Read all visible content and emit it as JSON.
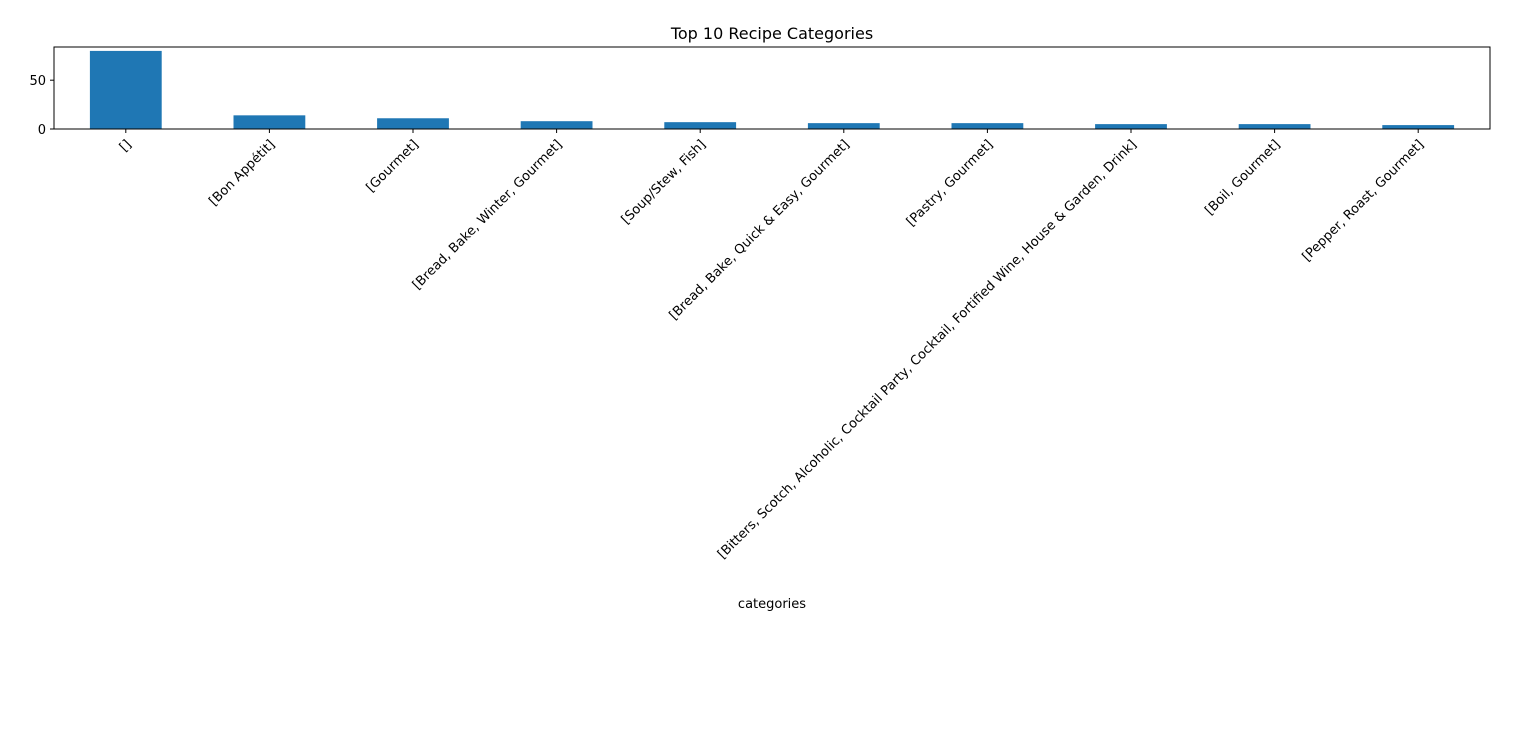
{
  "chart_data": {
    "type": "bar",
    "title": "Top 10 Recipe Categories",
    "xlabel": "categories",
    "ylabel": "",
    "categories": [
      "[]",
      "[Bon Appétit]",
      "[Gourmet]",
      "[Bread, Bake, Winter, Gourmet]",
      "[Soup/Stew, Fish]",
      "[Bread, Bake, Quick & Easy, Gourmet]",
      "[Pastry, Gourmet]",
      "[Bitters, Scotch, Alcoholic, Cocktail Party, Cocktail, Fortified Wine, House & Garden, Drink]",
      "[Boil, Gourmet]",
      "[Pepper, Roast, Gourmet]"
    ],
    "values": [
      80,
      14,
      11,
      8,
      7,
      6,
      6,
      5,
      5,
      4
    ],
    "ylim": [
      0,
      84
    ],
    "yticks": [
      0,
      50
    ],
    "grid": false,
    "legend": "none",
    "bar_color": "#1f77b4"
  }
}
